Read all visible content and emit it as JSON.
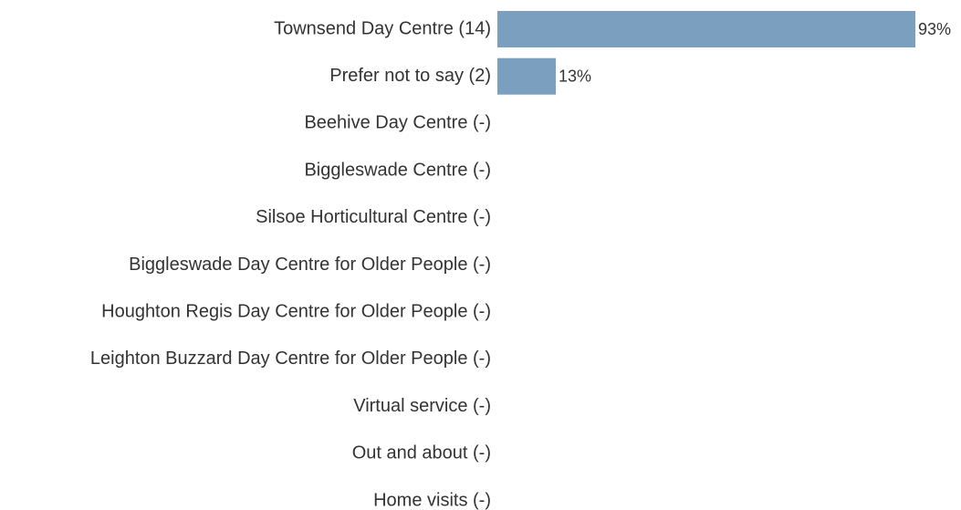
{
  "chart_data": {
    "type": "bar",
    "orientation": "horizontal",
    "categories": [
      "Townsend Day Centre (14)",
      "Prefer not to say (2)",
      "Beehive Day Centre (-)",
      "Biggleswade Centre (-)",
      "Silsoe Horticultural Centre (-)",
      "Biggleswade Day Centre for Older People (-)",
      "Houghton Regis Day Centre for Older People (-)",
      "Leighton Buzzard Day Centre for Older People (-)",
      "Virtual service (-)",
      "Out and about (-)",
      "Home visits (-)"
    ],
    "values": [
      93,
      13,
      null,
      null,
      null,
      null,
      null,
      null,
      null,
      null,
      null
    ],
    "value_labels": [
      "93%",
      "13%",
      null,
      null,
      null,
      null,
      null,
      null,
      null,
      null,
      null
    ],
    "color": "#7ba0bf"
  }
}
